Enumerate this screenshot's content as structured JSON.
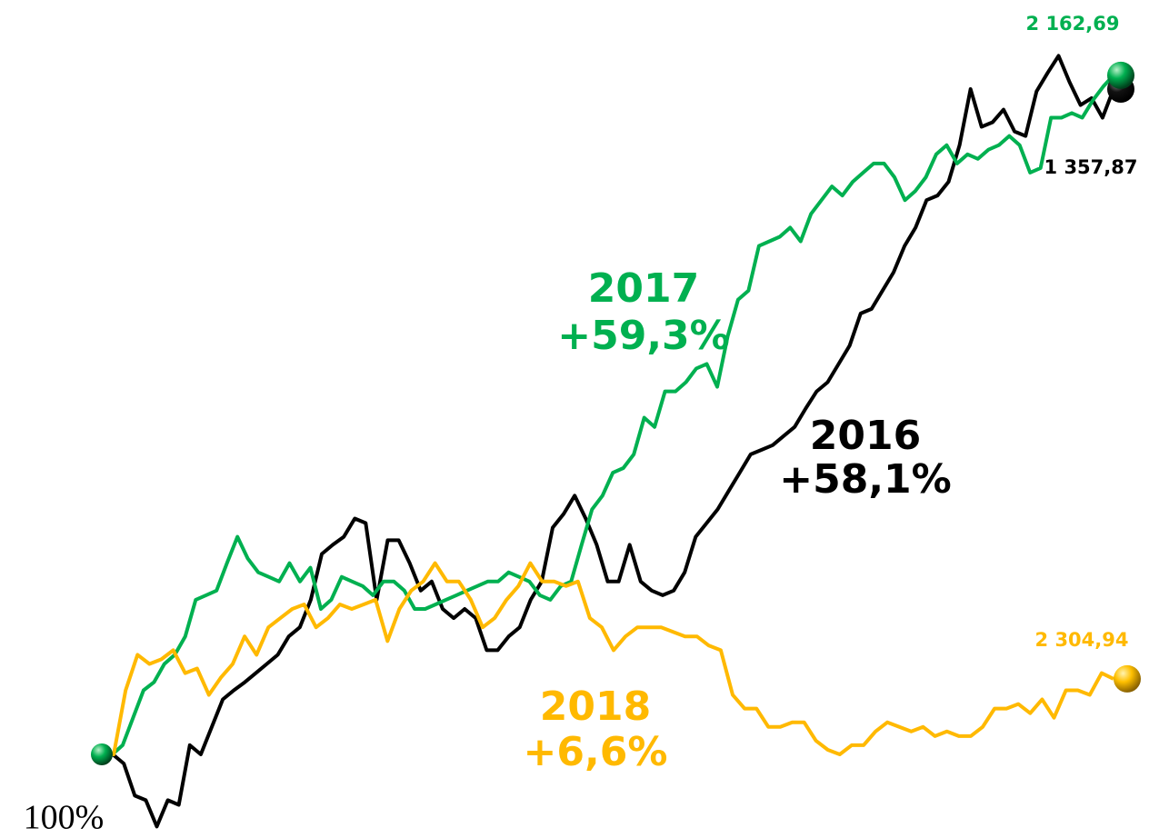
{
  "chart_data": {
    "type": "line",
    "base_label": "100%",
    "ylim": [
      92.7,
      162.7
    ],
    "series": [
      {
        "name": "2016",
        "change": "+58,1%",
        "end_label": "1 357,87",
        "color": "#000000",
        "values": [
          100,
          100,
          99.2,
          96.4,
          96.0,
          93.7,
          96.0,
          95.6,
          100.8,
          100,
          102.4,
          104.8,
          105.6,
          106.3,
          107.1,
          107.9,
          108.7,
          110.3,
          111.1,
          113.5,
          117.5,
          118.3,
          119.0,
          120.6,
          120.2,
          113.5,
          118.7,
          118.7,
          116.7,
          114.3,
          115.1,
          112.7,
          111.9,
          112.7,
          111.9,
          109.1,
          109.1,
          110.3,
          111.1,
          113.5,
          115.1,
          119.8,
          121.0,
          122.6,
          120.6,
          118.3,
          115.1,
          115.1,
          118.3,
          115.1,
          114.3,
          113.9,
          114.3,
          115.9,
          119.0,
          120.2,
          121.4,
          123.0,
          124.6,
          126.2,
          126.6,
          127.0,
          127.8,
          128.6,
          130.2,
          131.7,
          132.5,
          134.1,
          135.7,
          138.5,
          138.9,
          140.5,
          142.1,
          144.4,
          146.0,
          148.4,
          148.8,
          150.0,
          153.2,
          158.1,
          154.8,
          155.2,
          156.3,
          154.4,
          154.0,
          157.9,
          159.5,
          161.0,
          158.7,
          156.7,
          157.3,
          155.6,
          158.1
        ]
      },
      {
        "name": "2017",
        "change": "+59,3%",
        "end_label": "2 162,69",
        "color": "#00b050",
        "values": [
          100,
          100,
          100.8,
          103.2,
          105.6,
          106.3,
          107.9,
          108.7,
          110.3,
          113.5,
          113.9,
          114.3,
          116.7,
          119.0,
          117.1,
          115.9,
          115.5,
          115.1,
          116.7,
          115.1,
          116.3,
          112.7,
          113.5,
          115.5,
          115.1,
          114.7,
          113.9,
          115.1,
          115.1,
          114.3,
          112.7,
          112.7,
          113.1,
          113.5,
          113.9,
          114.3,
          114.7,
          115.1,
          115.1,
          115.9,
          115.5,
          115.1,
          113.9,
          113.5,
          114.7,
          115.1,
          118.3,
          121.4,
          122.6,
          124.6,
          125.0,
          126.2,
          129.4,
          128.6,
          131.7,
          131.7,
          132.5,
          133.7,
          134.1,
          132.1,
          136.5,
          139.7,
          140.5,
          144.4,
          144.8,
          145.2,
          146.0,
          144.8,
          147.2,
          148.4,
          149.6,
          148.8,
          150.0,
          150.8,
          151.6,
          151.6,
          150.4,
          148.4,
          149.2,
          150.4,
          152.4,
          153.2,
          151.6,
          152.4,
          152.0,
          152.8,
          153.2,
          154.0,
          153.2,
          150.8,
          151.2,
          155.6,
          155.6,
          156.0,
          155.6,
          157.1,
          158.3,
          159.3
        ]
      },
      {
        "name": "2018",
        "change": "+6,6%",
        "end_label": "2 304,94",
        "color": "#ffb900",
        "values": [
          100,
          100,
          105.6,
          108.7,
          107.9,
          108.3,
          109.1,
          107.1,
          107.5,
          105.2,
          106.7,
          107.9,
          110.3,
          108.7,
          111.1,
          111.9,
          112.7,
          113.1,
          111.1,
          111.9,
          113.1,
          112.7,
          113.1,
          113.5,
          109.9,
          112.7,
          114.3,
          115.1,
          116.7,
          115.1,
          115.1,
          113.5,
          111.1,
          111.9,
          113.5,
          114.7,
          116.7,
          115.1,
          115.1,
          114.7,
          115.1,
          111.9,
          111.1,
          109.1,
          110.3,
          111.1,
          111.1,
          111.1,
          110.7,
          110.3,
          110.3,
          109.5,
          109.1,
          105.2,
          104.0,
          104.0,
          102.4,
          102.4,
          102.8,
          102.8,
          101.2,
          100.4,
          100,
          100.8,
          100.8,
          102.0,
          102.8,
          102.4,
          102.0,
          102.4,
          101.6,
          102.0,
          101.6,
          101.6,
          102.4,
          104.0,
          104.0,
          104.4,
          103.6,
          104.8,
          103.2,
          105.6,
          105.6,
          105.2,
          107.1,
          106.6
        ]
      }
    ]
  }
}
